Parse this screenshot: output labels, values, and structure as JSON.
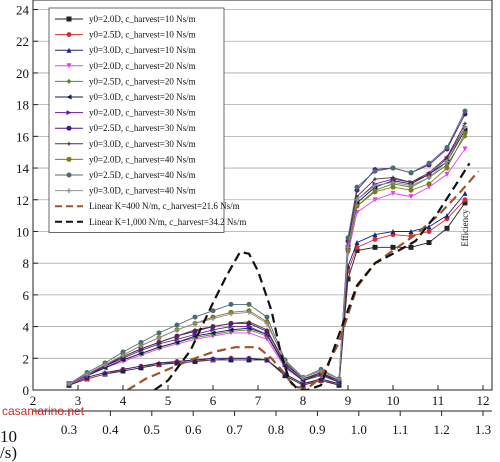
{
  "chart_data": {
    "type": "line",
    "x_bottom_ticks": [
      "0.3",
      "0.4",
      "0.5",
      "0.6",
      "0.7",
      "0.8",
      "0.9",
      "1.0",
      "1.1",
      "1.2",
      "1.3"
    ],
    "x_top_ticks": [
      "2",
      "3",
      "4",
      "5",
      "6",
      "7",
      "8",
      "9",
      "10",
      "11",
      "12"
    ],
    "y_ticks": [
      "0",
      "2",
      "4",
      "6",
      "8",
      "10",
      "12",
      "14",
      "16",
      "18",
      "20",
      "22",
      "24"
    ],
    "xlim": [
      2,
      12.2
    ],
    "ylim": [
      0,
      24.6
    ],
    "x_bottom_value_map": {
      "2.8": 0.3,
      "12": 1.3
    },
    "ylabel_fragment": "Efficiency",
    "xlabel_fragment_power": "10",
    "xlabel_fragment_unit": "/s)",
    "grid": "horizontal",
    "legend_position": "top-left",
    "series": [
      {
        "name": "y0=2.0D, c_harvest=10 Ns/m",
        "color": "#222222",
        "marker": "square",
        "dash": "solid",
        "x": [
          2.8,
          3.2,
          3.6,
          4,
          4.4,
          4.8,
          5.2,
          5.6,
          6,
          6.4,
          6.8,
          7.2,
          7.6,
          8,
          8.4,
          8.8,
          9,
          9.2,
          9.6,
          10,
          10.4,
          10.8,
          11.2,
          11.6
        ],
        "y": [
          0.3,
          0.7,
          1.0,
          1.2,
          1.4,
          1.6,
          1.7,
          1.8,
          1.9,
          1.9,
          1.9,
          1.9,
          0.9,
          0.3,
          0.6,
          0.3,
          7.0,
          8.8,
          9.0,
          9.0,
          9.0,
          9.3,
          10.2,
          11.8
        ]
      },
      {
        "name": "y0=2.5D, c_harvest=10 Ns/m",
        "color": "#d32f2f",
        "marker": "circle",
        "dash": "solid",
        "x": [
          2.8,
          3.2,
          3.6,
          4,
          4.4,
          4.8,
          5.2,
          5.6,
          6,
          6.4,
          6.8,
          7.2,
          7.6,
          8,
          8.4,
          8.8,
          9,
          9.2,
          9.6,
          10,
          10.4,
          10.8,
          11.2,
          11.6
        ],
        "y": [
          0.3,
          0.7,
          1.0,
          1.3,
          1.5,
          1.6,
          1.8,
          1.9,
          1.9,
          2.0,
          2.0,
          1.9,
          1.0,
          0.4,
          0.6,
          0.4,
          7.5,
          9.0,
          9.5,
          9.8,
          9.7,
          10.0,
          10.8,
          12.0
        ]
      },
      {
        "name": "y0=3.0D, c_harvest=10 Ns/m",
        "color": "#1a237e",
        "marker": "triangle",
        "dash": "solid",
        "x": [
          2.8,
          3.2,
          3.6,
          4,
          4.4,
          4.8,
          5.2,
          5.6,
          6,
          6.4,
          6.8,
          7.2,
          7.6,
          8,
          8.4,
          8.8,
          9,
          9.2,
          9.6,
          10,
          10.4,
          10.8,
          11.2,
          11.6
        ],
        "y": [
          0.3,
          0.8,
          1.1,
          1.3,
          1.5,
          1.7,
          1.8,
          1.9,
          2.0,
          2.0,
          2.0,
          1.9,
          1.0,
          0.4,
          0.7,
          0.4,
          7.8,
          9.3,
          9.8,
          10.0,
          10.0,
          10.3,
          11.0,
          12.4
        ]
      },
      {
        "name": "y0=2.0D, c_harvest=20 Ns/m",
        "color": "#e040fb",
        "marker": "triangle-down",
        "dash": "solid",
        "x": [
          2.8,
          3.2,
          3.6,
          4,
          4.4,
          4.8,
          5.2,
          5.6,
          6,
          6.4,
          6.8,
          7.2,
          7.6,
          8,
          8.4,
          8.8,
          9,
          9.2,
          9.6,
          10,
          10.4,
          10.8,
          11.2,
          11.6
        ],
        "y": [
          0.4,
          0.9,
          1.4,
          1.8,
          2.2,
          2.6,
          2.9,
          3.2,
          3.4,
          3.6,
          3.6,
          3.2,
          1.4,
          0.6,
          0.9,
          0.5,
          8.6,
          11.2,
          12.0,
          12.4,
          12.2,
          12.8,
          13.6,
          15.2
        ]
      },
      {
        "name": "y0=2.5D, c_harvest=20 Ns/m",
        "color": "#558b2f",
        "marker": "diamond",
        "dash": "solid",
        "x": [
          2.8,
          3.2,
          3.6,
          4,
          4.4,
          4.8,
          5.2,
          5.6,
          6,
          6.4,
          6.8,
          7.2,
          7.6,
          8,
          8.4,
          8.8,
          9,
          9.2,
          9.6,
          10,
          10.4,
          10.8,
          11.2,
          11.6
        ],
        "y": [
          0.4,
          0.9,
          1.4,
          1.9,
          2.3,
          2.7,
          3.0,
          3.3,
          3.5,
          3.7,
          3.8,
          3.4,
          1.5,
          0.6,
          0.9,
          0.5,
          8.9,
          11.6,
          12.6,
          13.0,
          12.8,
          13.4,
          14.2,
          16.0
        ]
      },
      {
        "name": "y0=3.0D, c_harvest=20 Ns/m",
        "color": "#0d1b4a",
        "marker": "triangle-left",
        "dash": "solid",
        "x": [
          2.8,
          3.2,
          3.6,
          4,
          4.4,
          4.8,
          5.2,
          5.6,
          6,
          6.4,
          6.8,
          7.2,
          7.6,
          8,
          8.4,
          8.8,
          9,
          9.2,
          9.6,
          10,
          10.4,
          10.8,
          11.2,
          11.6
        ],
        "y": [
          0.4,
          0.9,
          1.4,
          1.9,
          2.3,
          2.7,
          3.0,
          3.4,
          3.6,
          3.8,
          3.9,
          3.5,
          1.5,
          0.6,
          1.0,
          0.5,
          9.0,
          11.8,
          12.8,
          13.2,
          13.0,
          13.6,
          14.4,
          16.4
        ]
      },
      {
        "name": "y0=2.0D, c_harvest=30 Ns/m",
        "color": "#6a1b9a",
        "marker": "triangle-right",
        "dash": "solid",
        "x": [
          2.8,
          3.2,
          3.6,
          4,
          4.4,
          4.8,
          5.2,
          5.6,
          6,
          6.4,
          6.8,
          7.2,
          7.6,
          8,
          8.4,
          8.8,
          9,
          9.2,
          9.6,
          10,
          10.4,
          10.8,
          11.2,
          11.6
        ],
        "y": [
          0.4,
          0.9,
          1.5,
          2.0,
          2.5,
          2.9,
          3.2,
          3.5,
          3.8,
          4.0,
          4.0,
          3.5,
          1.6,
          0.7,
          1.0,
          0.6,
          9.0,
          12.0,
          13.0,
          13.3,
          13.1,
          13.6,
          14.6,
          16.6
        ]
      },
      {
        "name": "y0=2.5D, c_harvest=30 Ns/m",
        "color": "#4a148c",
        "marker": "circle",
        "dash": "solid",
        "x": [
          2.8,
          3.2,
          3.6,
          4,
          4.4,
          4.8,
          5.2,
          5.6,
          6,
          6.4,
          6.8,
          7.2,
          7.6,
          8,
          8.4,
          8.8,
          9,
          9.2,
          9.6,
          10,
          10.4,
          10.8,
          11.2,
          11.6
        ],
        "y": [
          0.4,
          1.0,
          1.5,
          2.1,
          2.6,
          3.0,
          3.4,
          3.7,
          4.0,
          4.2,
          4.2,
          3.7,
          1.7,
          0.7,
          1.1,
          0.6,
          9.4,
          12.6,
          13.9,
          14.0,
          13.7,
          14.2,
          15.2,
          17.4
        ]
      },
      {
        "name": "y0=3.0D, c_harvest=30 Ns/m",
        "color": "#4e342e",
        "marker": "star",
        "dash": "solid",
        "x": [
          2.8,
          3.2,
          3.6,
          4,
          4.4,
          4.8,
          5.2,
          5.6,
          6,
          6.4,
          6.8,
          7.2,
          7.6,
          8,
          8.4,
          8.8,
          9,
          9.2,
          9.6,
          10,
          10.4,
          10.8,
          11.2,
          11.6
        ],
        "y": [
          0.4,
          1.0,
          1.6,
          2.1,
          2.6,
          3.0,
          3.4,
          3.8,
          4.0,
          4.2,
          4.3,
          3.8,
          1.7,
          0.7,
          1.1,
          0.6,
          9.2,
          12.2,
          13.3,
          13.4,
          13.1,
          13.7,
          14.7,
          16.8
        ]
      },
      {
        "name": "y0=2.0D, c_harvest=40 Ns/m",
        "color": "#827717",
        "marker": "circle",
        "dash": "solid",
        "x": [
          2.8,
          3.2,
          3.6,
          4,
          4.4,
          4.8,
          5.2,
          5.6,
          6,
          6.4,
          6.8,
          7.2,
          7.6,
          8,
          8.4,
          8.8,
          9,
          9.2,
          9.6,
          10,
          10.4,
          10.8,
          11.2,
          11.6
        ],
        "y": [
          0.4,
          1.0,
          1.6,
          2.2,
          2.8,
          3.3,
          3.8,
          4.2,
          4.6,
          4.9,
          5.0,
          4.3,
          1.8,
          0.8,
          1.2,
          0.7,
          8.8,
          11.6,
          12.5,
          12.8,
          12.6,
          13.0,
          14.0,
          16.2
        ]
      },
      {
        "name": "y0=2.5D, c_harvest=40 Ns/m",
        "color": "#4d6b73",
        "marker": "circle",
        "dash": "solid",
        "x": [
          2.8,
          3.2,
          3.6,
          4,
          4.4,
          4.8,
          5.2,
          5.6,
          6,
          6.4,
          6.8,
          7.2,
          7.6,
          8,
          8.4,
          8.8,
          9,
          9.2,
          9.6,
          10,
          10.4,
          10.8,
          11.2,
          11.6
        ],
        "y": [
          0.4,
          1.1,
          1.7,
          2.4,
          3.0,
          3.6,
          4.1,
          4.6,
          5.0,
          5.4,
          5.4,
          4.6,
          1.9,
          0.8,
          1.3,
          0.7,
          9.6,
          12.8,
          13.8,
          14.0,
          13.7,
          14.3,
          15.3,
          17.6
        ]
      },
      {
        "name": "y0=3.0D, c_harvest=40 Ns/m",
        "color": "#8d8d8d",
        "marker": "plus",
        "dash": "solid",
        "x": [
          2.8,
          3.2,
          3.6,
          4,
          4.4,
          4.8,
          5.2,
          5.6,
          6,
          6.4,
          6.8,
          7.2,
          7.6,
          8,
          8.4,
          8.8,
          9,
          9.2,
          9.6,
          10,
          10.4,
          10.8,
          11.2,
          11.6
        ],
        "y": [
          0.4,
          1.0,
          1.6,
          2.2,
          2.8,
          3.3,
          3.8,
          4.2,
          4.5,
          4.8,
          4.9,
          4.2,
          1.8,
          0.8,
          1.2,
          0.7,
          9.0,
          12.0,
          12.9,
          13.1,
          12.9,
          13.4,
          14.4,
          16.6
        ]
      },
      {
        "name": "Linear K=400 N/m, c_harvest=21.6 Ns/m",
        "color": "#a0522d",
        "marker": "none",
        "dash": "dashed",
        "x": [
          4.1,
          4.5,
          5,
          5.5,
          6,
          6.5,
          7,
          7.3,
          7.6,
          7.8,
          8.1,
          8.4,
          8.8,
          9.2,
          9.6,
          10,
          10.5,
          11,
          11.5,
          11.9
        ],
        "y": [
          0,
          0.7,
          1.3,
          1.9,
          2.4,
          2.7,
          2.7,
          2.0,
          1.0,
          0.2,
          0.1,
          0.8,
          3.0,
          6.5,
          8.0,
          8.8,
          9.8,
          11.0,
          12.5,
          13.8
        ]
      },
      {
        "name": "Linear K=1,000 N/m, c_harvest=34.2 Ns/m",
        "color": "#111111",
        "marker": "none",
        "dash": "dashed",
        "x": [
          4.7,
          5,
          5.5,
          6,
          6.3,
          6.6,
          6.8,
          7,
          7.3,
          7.5,
          7.7,
          7.9,
          8.1,
          8.4,
          8.8,
          9.2,
          9.6,
          10,
          10.5,
          11,
          11.5,
          11.7
        ],
        "y": [
          0,
          0.6,
          2.5,
          5.5,
          7.2,
          8.7,
          8.6,
          7.5,
          5.0,
          2.4,
          0.6,
          0,
          0,
          0.3,
          3.5,
          6.6,
          8.0,
          8.6,
          9.4,
          11.2,
          13.4,
          14.3
        ]
      }
    ]
  },
  "watermark": "casamarino.net"
}
